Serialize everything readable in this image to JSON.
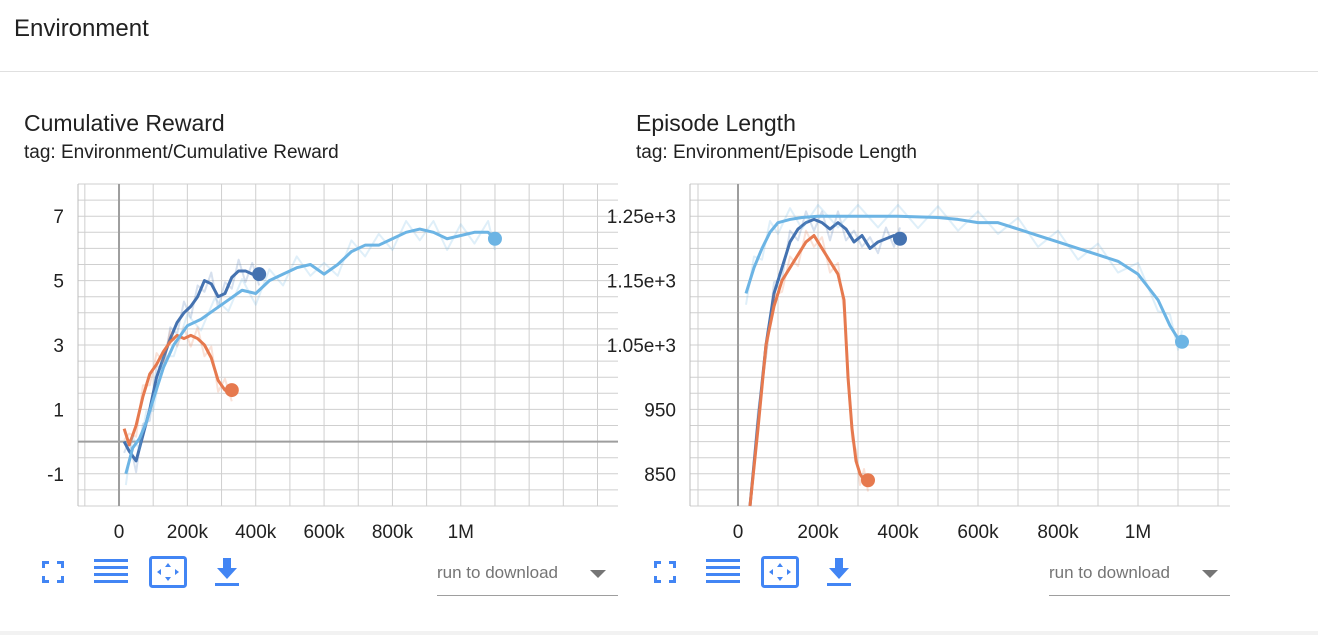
{
  "header": {
    "title": "Environment"
  },
  "colors": {
    "run_dark_blue": "#4472b0",
    "run_orange": "#e6794e",
    "run_light_blue": "#6cb4e4",
    "accent": "#4285f4",
    "grid": "#cfcfcf",
    "axis": "#9e9e9e"
  },
  "cards": [
    {
      "title": "Cumulative Reward",
      "tag": "tag: Environment/Cumulative Reward",
      "toolbar": {
        "icons": [
          "fullscreen-icon",
          "toggle-log-scale-icon",
          "fit-domain-icon",
          "download-icon"
        ],
        "download_placeholder": "run to download"
      },
      "y_ticks": [
        "7",
        "5",
        "3",
        "1",
        "-1"
      ],
      "x_ticks": [
        "0",
        "200k",
        "400k",
        "600k",
        "800k",
        "1M"
      ]
    },
    {
      "title": "Episode Length",
      "tag": "tag: Environment/Episode Length",
      "toolbar": {
        "icons": [
          "fullscreen-icon",
          "toggle-log-scale-icon",
          "fit-domain-icon",
          "download-icon"
        ],
        "download_placeholder": "run to download"
      },
      "y_ticks": [
        "1.25e+3",
        "1.15e+3",
        "1.05e+3",
        "950",
        "850"
      ],
      "x_ticks": [
        "0",
        "200k",
        "400k",
        "600k",
        "800k",
        "1M"
      ]
    }
  ],
  "chart_data": [
    {
      "type": "line",
      "title": "Cumulative Reward",
      "xlim": [
        -120000,
        1460000
      ],
      "ylim": [
        -2,
        8
      ],
      "y_tick_values": [
        7,
        5,
        3,
        1,
        -1
      ],
      "x_tick_values": [
        0,
        200000,
        400000,
        600000,
        800000,
        1000000
      ],
      "grid": true,
      "series": [
        {
          "color": "#4472b0",
          "x": [
            15000,
            30000,
            50000,
            70000,
            90000,
            110000,
            130000,
            150000,
            170000,
            190000,
            210000,
            230000,
            250000,
            270000,
            290000,
            310000,
            330000,
            350000,
            370000,
            390000,
            410000
          ],
          "y": [
            0.0,
            -0.3,
            -0.6,
            0.2,
            1.0,
            2.0,
            2.6,
            3.2,
            3.7,
            4.0,
            4.2,
            4.5,
            5.0,
            4.9,
            4.5,
            4.6,
            5.1,
            5.3,
            5.3,
            5.2,
            5.2
          ]
        },
        {
          "color": "#e6794e",
          "x": [
            15000,
            30000,
            50000,
            70000,
            90000,
            110000,
            130000,
            150000,
            170000,
            190000,
            210000,
            230000,
            250000,
            270000,
            290000,
            310000,
            330000
          ],
          "y": [
            0.4,
            -0.1,
            0.5,
            1.4,
            2.1,
            2.4,
            2.8,
            3.1,
            3.3,
            3.2,
            3.3,
            3.2,
            3.0,
            2.6,
            1.9,
            1.6,
            1.6
          ]
        },
        {
          "color": "#6cb4e4",
          "x": [
            20000,
            40000,
            60000,
            80000,
            100000,
            130000,
            160000,
            200000,
            240000,
            280000,
            320000,
            360000,
            400000,
            440000,
            480000,
            520000,
            560000,
            600000,
            640000,
            680000,
            720000,
            760000,
            800000,
            840000,
            880000,
            920000,
            960000,
            1000000,
            1040000,
            1080000,
            1100000
          ],
          "y": [
            -1.0,
            -0.2,
            0.1,
            0.6,
            1.3,
            2.3,
            3.0,
            3.6,
            3.8,
            4.1,
            4.4,
            4.7,
            4.6,
            5.0,
            5.2,
            5.4,
            5.5,
            5.2,
            5.5,
            5.9,
            6.1,
            6.1,
            6.3,
            6.5,
            6.6,
            6.5,
            6.3,
            6.4,
            6.5,
            6.5,
            6.3
          ]
        }
      ]
    },
    {
      "type": "line",
      "title": "Episode Length",
      "xlim": [
        -120000,
        1230000
      ],
      "ylim": [
        800,
        1300
      ],
      "y_tick_values": [
        1250,
        1150,
        1050,
        950,
        850
      ],
      "x_tick_values": [
        0,
        200000,
        400000,
        600000,
        800000,
        1000000
      ],
      "grid": true,
      "series": [
        {
          "color": "#4472b0",
          "x": [
            30000,
            50000,
            70000,
            90000,
            110000,
            130000,
            150000,
            170000,
            190000,
            210000,
            230000,
            250000,
            270000,
            290000,
            310000,
            330000,
            350000,
            370000,
            390000,
            405000
          ],
          "y": [
            800,
            930,
            1050,
            1130,
            1170,
            1210,
            1230,
            1240,
            1245,
            1240,
            1230,
            1240,
            1230,
            1210,
            1220,
            1200,
            1210,
            1215,
            1220,
            1215
          ]
        },
        {
          "color": "#e6794e",
          "x": [
            30000,
            50000,
            70000,
            90000,
            110000,
            130000,
            150000,
            170000,
            190000,
            210000,
            230000,
            250000,
            265000,
            275000,
            285000,
            295000,
            305000,
            315000,
            325000
          ],
          "y": [
            800,
            920,
            1050,
            1110,
            1150,
            1170,
            1190,
            1210,
            1220,
            1200,
            1180,
            1160,
            1120,
            1000,
            920,
            870,
            850,
            840,
            840
          ]
        },
        {
          "color": "#6cb4e4",
          "x": [
            20000,
            40000,
            60000,
            80000,
            100000,
            130000,
            160000,
            200000,
            250000,
            300000,
            350000,
            400000,
            450000,
            500000,
            550000,
            600000,
            650000,
            700000,
            750000,
            800000,
            850000,
            900000,
            950000,
            1000000,
            1050000,
            1080000,
            1100000,
            1110000
          ],
          "y": [
            1130,
            1170,
            1200,
            1225,
            1240,
            1245,
            1248,
            1250,
            1250,
            1250,
            1250,
            1250,
            1249,
            1248,
            1245,
            1240,
            1240,
            1230,
            1220,
            1210,
            1200,
            1190,
            1180,
            1160,
            1120,
            1080,
            1060,
            1055
          ]
        }
      ]
    }
  ]
}
